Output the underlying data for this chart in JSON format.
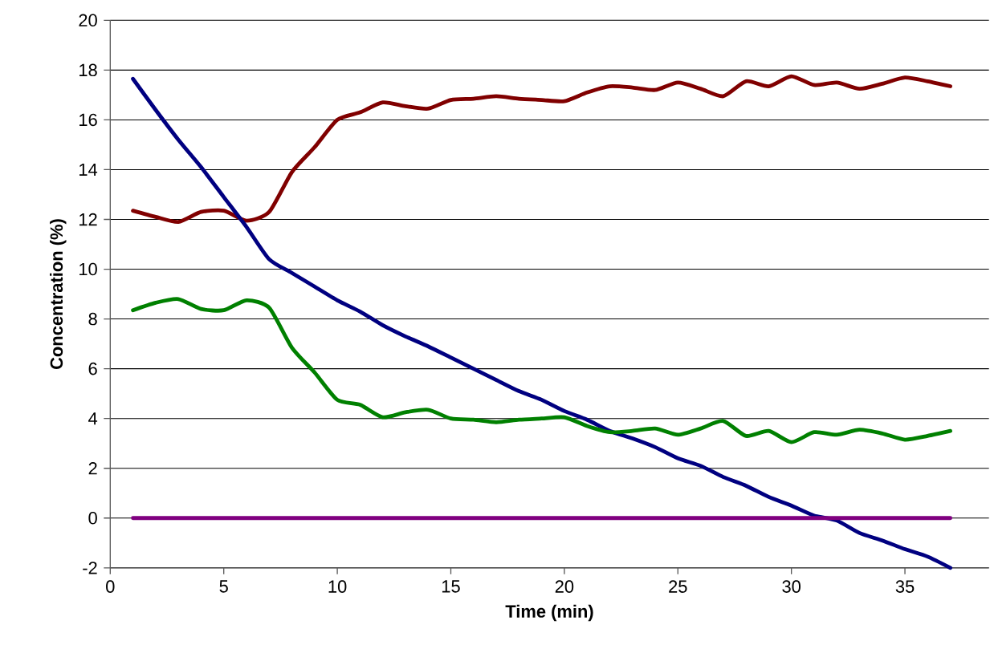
{
  "chart_data": {
    "type": "line",
    "xlabel": "Time (min)",
    "ylabel": "Concentration (%)",
    "x": [
      1,
      2,
      3,
      4,
      5,
      6,
      7,
      8,
      9,
      10,
      11,
      12,
      13,
      14,
      15,
      16,
      17,
      18,
      19,
      20,
      21,
      22,
      23,
      24,
      25,
      26,
      27,
      28,
      29,
      30,
      31,
      32,
      33,
      34,
      35,
      36,
      37
    ],
    "series": [
      {
        "color": "#800000",
        "values": [
          12.35,
          12.1,
          11.9,
          12.3,
          12.35,
          11.95,
          12.3,
          13.9,
          14.9,
          16.0,
          16.3,
          16.7,
          16.55,
          16.45,
          16.8,
          16.85,
          16.95,
          16.85,
          16.8,
          16.75,
          17.1,
          17.35,
          17.3,
          17.2,
          17.5,
          17.25,
          16.95,
          17.55,
          17.35,
          17.75,
          17.4,
          17.5,
          17.25,
          17.45,
          17.7,
          17.55,
          17.35
        ]
      },
      {
        "color": "#000080",
        "values": [
          17.65,
          16.4,
          15.2,
          14.1,
          12.9,
          11.7,
          10.4,
          9.85,
          9.3,
          8.75,
          8.3,
          7.75,
          7.3,
          6.9,
          6.45,
          6.0,
          5.55,
          5.1,
          4.75,
          4.3,
          3.95,
          3.5,
          3.2,
          2.85,
          2.4,
          2.1,
          1.65,
          1.3,
          0.85,
          0.5,
          0.1,
          -0.1,
          -0.6,
          -0.9,
          -1.25,
          -1.55,
          -2.0
        ]
      },
      {
        "color": "#008000",
        "values": [
          8.35,
          8.65,
          8.8,
          8.4,
          8.35,
          8.75,
          8.45,
          6.85,
          5.85,
          4.75,
          4.55,
          4.05,
          4.25,
          4.35,
          4.0,
          3.95,
          3.85,
          3.95,
          4.0,
          4.05,
          3.7,
          3.45,
          3.5,
          3.6,
          3.35,
          3.6,
          3.9,
          3.3,
          3.5,
          3.05,
          3.45,
          3.35,
          3.55,
          3.4,
          3.15,
          3.3,
          3.5
        ]
      },
      {
        "color": "#800080",
        "values": [
          0,
          0,
          0,
          0,
          0,
          0,
          0,
          0,
          0,
          0,
          0,
          0,
          0,
          0,
          0,
          0,
          0,
          0,
          0,
          0,
          0,
          0,
          0,
          0,
          0,
          0,
          0,
          0,
          0,
          0,
          0,
          0,
          0,
          0,
          0,
          0,
          0
        ]
      }
    ],
    "xlim": [
      0,
      38.7
    ],
    "ylim": [
      -2,
      20
    ],
    "xticks": [
      0,
      5,
      10,
      15,
      20,
      25,
      30,
      35
    ],
    "yticks": [
      -2,
      0,
      2,
      4,
      6,
      8,
      10,
      12,
      14,
      16,
      18,
      20
    ],
    "grid": "y",
    "marker": "none",
    "line_style": "solid"
  }
}
